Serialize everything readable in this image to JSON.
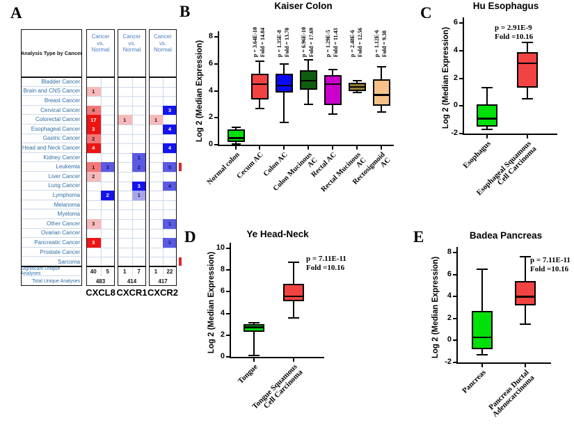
{
  "panel_letters": {
    "A": "A",
    "B": "B",
    "C": "C",
    "D": "D",
    "E": "E"
  },
  "table_a": {
    "corner_header": "Analysis Type by Cancer",
    "group_header_lines": "Cancer\nvs.\nNormal",
    "genes": [
      "CXCL8",
      "CXCR1",
      "CXCR2"
    ],
    "cell_colors": {
      "red1": "#f7baba",
      "red2": "#f47878",
      "red3": "#ee1414",
      "blue1": "#a6a6ee",
      "blue2": "#5a5ae2",
      "blue3": "#1414ee"
    },
    "rows": [
      {
        "name": "Bladder Cancer",
        "cells": [
          null,
          null,
          null,
          null,
          null,
          null
        ]
      },
      {
        "name": "Brain and CNS Cancer",
        "cells": [
          {
            "v": "1",
            "c": "red1"
          },
          null,
          null,
          null,
          null,
          null
        ]
      },
      {
        "name": "Breast Cancer",
        "cells": [
          null,
          null,
          null,
          null,
          null,
          null
        ]
      },
      {
        "name": "Cervical Cancer",
        "cells": [
          {
            "v": "4",
            "c": "red2"
          },
          null,
          null,
          null,
          null,
          {
            "v": "3",
            "c": "blue3"
          }
        ]
      },
      {
        "name": "Colorectal Cancer",
        "cells": [
          {
            "v": "17",
            "c": "red3"
          },
          null,
          {
            "v": "1",
            "c": "red1"
          },
          null,
          {
            "v": "1",
            "c": "red1"
          },
          null
        ]
      },
      {
        "name": "Esophageal Cancer",
        "cells": [
          {
            "v": "3",
            "c": "red3"
          },
          null,
          null,
          null,
          null,
          {
            "v": "4",
            "c": "blue3"
          }
        ]
      },
      {
        "name": "Gastric Cancer",
        "cells": [
          {
            "v": "2",
            "c": "red2"
          },
          null,
          null,
          null,
          null,
          null
        ]
      },
      {
        "name": "Head and Neck Cancer",
        "cells": [
          {
            "v": "4",
            "c": "red3"
          },
          null,
          null,
          null,
          null,
          {
            "v": "4",
            "c": "blue3"
          }
        ]
      },
      {
        "name": "Kidney Cancer",
        "cells": [
          null,
          null,
          null,
          {
            "v": "1",
            "c": "blue2"
          },
          null,
          null
        ]
      },
      {
        "name": "Leukemia",
        "cells": [
          {
            "v": "1",
            "c": "red2"
          },
          {
            "v": "3",
            "c": "blue2"
          },
          null,
          {
            "v": "2",
            "c": "blue2"
          },
          null,
          {
            "v": "5",
            "c": "blue2"
          }
        ],
        "edge_mark": true
      },
      {
        "name": "Liver Cancer",
        "cells": [
          {
            "v": "2",
            "c": "red1"
          },
          null,
          null,
          null,
          null,
          null
        ]
      },
      {
        "name": "Lung Cancer",
        "cells": [
          null,
          null,
          null,
          {
            "v": "3",
            "c": "blue3"
          },
          null,
          {
            "v": "4",
            "c": "blue2"
          }
        ]
      },
      {
        "name": "Lymphoma",
        "cells": [
          null,
          {
            "v": "2",
            "c": "blue3"
          },
          null,
          {
            "v": "1",
            "c": "blue1"
          },
          null,
          null
        ]
      },
      {
        "name": "Melanoma",
        "cells": [
          null,
          null,
          null,
          null,
          null,
          null
        ]
      },
      {
        "name": "Myeloma",
        "cells": [
          null,
          null,
          null,
          null,
          null,
          null
        ]
      },
      {
        "name": "Other Cancer",
        "cells": [
          {
            "v": "3",
            "c": "red1"
          },
          null,
          null,
          null,
          null,
          {
            "v": "1",
            "c": "blue2"
          }
        ]
      },
      {
        "name": "Ovarian Cancer",
        "cells": [
          null,
          null,
          null,
          null,
          null,
          null
        ]
      },
      {
        "name": "Pancreatic Cancer",
        "cells": [
          {
            "v": "3",
            "c": "red3"
          },
          null,
          null,
          null,
          null,
          {
            "v": "1",
            "c": "blue2"
          }
        ]
      },
      {
        "name": "Prostate Cancer",
        "cells": [
          null,
          null,
          null,
          null,
          null,
          null
        ]
      },
      {
        "name": "Sarcoma",
        "cells": [
          null,
          null,
          null,
          null,
          null,
          null
        ],
        "edge_mark": true
      }
    ],
    "significant_row": {
      "label": "Significant Unique Analyses",
      "values": [
        "40",
        "5",
        "1",
        "7",
        "1",
        "22"
      ]
    },
    "total_row": {
      "label": "Total Unique Analyses",
      "values": [
        "483",
        "414",
        "417"
      ]
    }
  },
  "chart_data": [
    {
      "id": "B",
      "type": "box",
      "title": "Kaiser Colon",
      "ylabel": "Log 2 (Median Expression)",
      "ylim": [
        0,
        8
      ],
      "yticks": [
        0,
        2,
        4,
        6,
        8
      ],
      "categories": [
        "Normal colon",
        "Cecum AC",
        "Colon AC",
        "Colon Mucinous\nAC",
        "Rectal AC",
        "Rectal Mucinous\nAC",
        "Rectosigmoid\nAC"
      ],
      "series": [
        {
          "name": "Normal colon",
          "low": 0.05,
          "q1": 0.2,
          "median": 0.5,
          "q3": 1.15,
          "high": 1.3,
          "color": "#00e009",
          "annotation": null
        },
        {
          "name": "Cecum AC",
          "low": 2.7,
          "q1": 3.35,
          "median": 4.5,
          "q3": 5.25,
          "high": 6.2,
          "color": "#f24343",
          "annotation": "p = 3.64E-10\nFold = 14.84"
        },
        {
          "name": "Colon AC",
          "low": 1.65,
          "q1": 3.85,
          "median": 4.4,
          "q3": 5.25,
          "high": 6.0,
          "color": "#0a0af0",
          "annotation": "p = 1.35E-8\nFold = 13.70"
        },
        {
          "name": "Colon Mucinous AC",
          "low": 3.0,
          "q1": 4.1,
          "median": 4.75,
          "q3": 5.5,
          "high": 6.3,
          "color": "#0e5c0e",
          "annotation": "p = 6.96E-10\nFold = 17.69"
        },
        {
          "name": "Rectal AC",
          "low": 2.25,
          "q1": 2.95,
          "median": 4.5,
          "q3": 5.15,
          "high": 5.55,
          "color": "#cc00cc",
          "annotation": "p = 1.29E-5\nFold = 11.43"
        },
        {
          "name": "Rectal Mucinous AC",
          "low": 3.85,
          "q1": 4.0,
          "median": 4.3,
          "q3": 4.6,
          "high": 4.75,
          "color": "#8f7d35",
          "annotation": "p = 2.48E-6\nFold = 12.56"
        },
        {
          "name": "Rectosigmoid AC",
          "low": 2.45,
          "q1": 2.9,
          "median": 3.7,
          "q3": 4.85,
          "high": 5.8,
          "color": "#f5c188",
          "annotation": "p = 1.12E-6\nFold = 9.38"
        }
      ]
    },
    {
      "id": "C",
      "type": "box",
      "title": "Hu Esophagus",
      "ylabel": "Log 2 (Median Expression)",
      "ylim": [
        -2,
        6
      ],
      "yticks": [
        -2,
        0,
        2,
        4,
        6
      ],
      "categories": [
        "Esophagus",
        "Esophageal Squamous\nCell Carcinoma"
      ],
      "series": [
        {
          "name": "Esophagus",
          "low": -1.7,
          "q1": -1.5,
          "median": -0.9,
          "q3": 0.1,
          "high": 1.3,
          "color": "#00e009",
          "annotation": null
        },
        {
          "name": "Esophageal Squamous Cell Carcinoma",
          "low": 0.5,
          "q1": 1.3,
          "median": 3.1,
          "q3": 3.9,
          "high": 4.6,
          "color": "#f24343",
          "annotation": "p = 2.91E-9\nFold =10.16"
        }
      ]
    },
    {
      "id": "D",
      "type": "box",
      "title": "Ye Head-Neck",
      "ylabel": "Log 2 (Median Expression)",
      "ylim": [
        0,
        10
      ],
      "yticks": [
        0,
        2,
        4,
        6,
        8,
        10
      ],
      "categories": [
        "Tongue",
        "Tongue Squamous\nCell Carcinoma"
      ],
      "series": [
        {
          "name": "Tongue",
          "low": 0.1,
          "q1": 2.3,
          "median": 2.75,
          "q3": 3.0,
          "high": 3.15,
          "color": "#00e009",
          "annotation": null
        },
        {
          "name": "Tongue Squamous Cell Carcinoma",
          "low": 3.6,
          "q1": 5.1,
          "median": 5.6,
          "q3": 6.7,
          "high": 8.7,
          "color": "#f24343",
          "annotation": "p = 7.11E-11\nFold =10.16"
        }
      ]
    },
    {
      "id": "E",
      "type": "box",
      "title": "Badea Pancreas",
      "ylabel": "Log 2 (Median Expression)",
      "ylim": [
        -2,
        8
      ],
      "yticks": [
        -2,
        0,
        2,
        4,
        6,
        8
      ],
      "categories": [
        "Pancreas",
        "Pancreas Ductal\nAdenocarcinoma"
      ],
      "series": [
        {
          "name": "Pancreas",
          "low": -1.3,
          "q1": -0.8,
          "median": 0.3,
          "q3": 2.7,
          "high": 6.5,
          "color": "#00e009",
          "annotation": null
        },
        {
          "name": "Pancreas Ductal Adenocarcinoma",
          "low": 1.5,
          "q1": 3.2,
          "median": 4.0,
          "q3": 5.4,
          "high": 7.6,
          "color": "#f24343",
          "annotation": "p = 7.11E-11\nFold =10.16"
        }
      ]
    }
  ]
}
